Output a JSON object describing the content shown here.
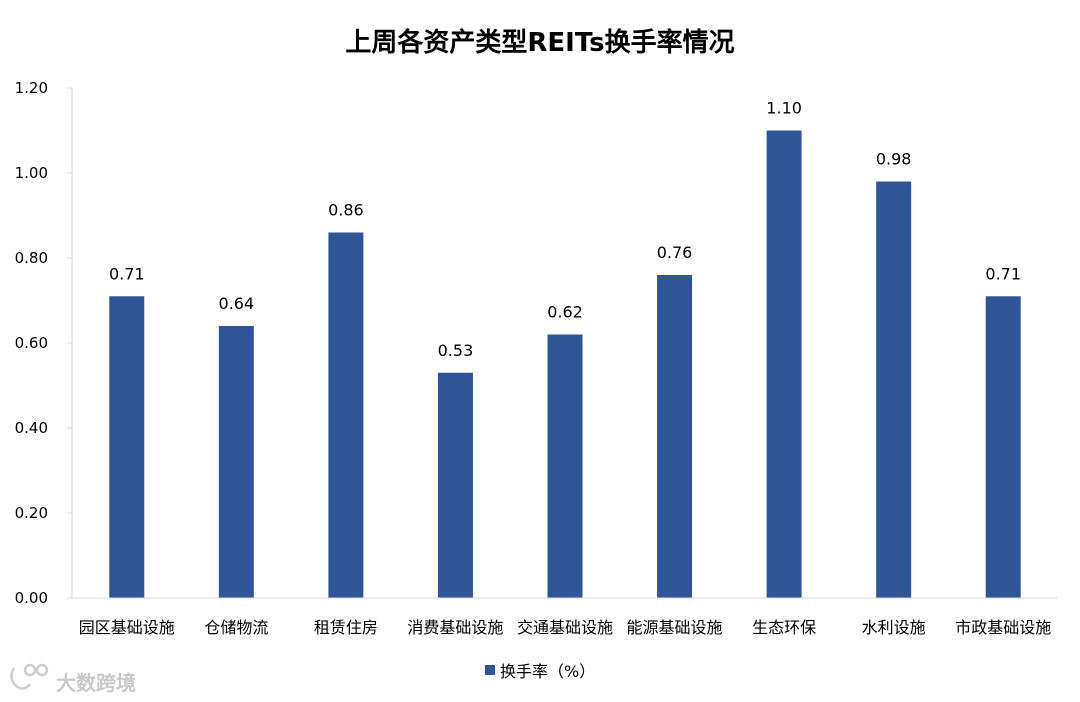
{
  "chart_data": {
    "type": "bar",
    "title": "上周各资产类型REITs换手率情况",
    "categories": [
      "园区基础设施",
      "仓储物流",
      "租赁住房",
      "消费基础设施",
      "交通基础设施",
      "能源基础设施",
      "生态环保",
      "水利设施",
      "市政基础设施"
    ],
    "series": [
      {
        "name": "换手率（%）",
        "values": [
          0.71,
          0.64,
          0.86,
          0.53,
          0.62,
          0.76,
          1.1,
          0.98,
          0.71
        ],
        "color": "#2f5597"
      }
    ],
    "ylim": [
      0,
      1.2
    ],
    "yticks": [
      "0.00",
      "0.20",
      "0.40",
      "0.60",
      "0.80",
      "1.00",
      "1.20"
    ],
    "grid": false,
    "legend_position": "bottom"
  },
  "watermark": "大数跨境"
}
